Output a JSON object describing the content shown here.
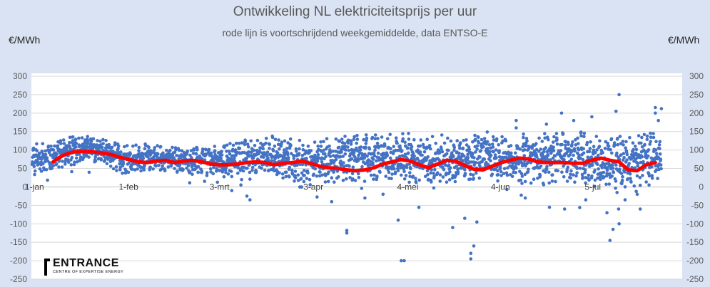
{
  "chart_data": {
    "type": "scatter",
    "title": "Ontwikkeling NL elektriciteitsprijs per uur",
    "subtitle": "rode lijn is voortschrijdend weekgemiddelde, data ENTSO-E",
    "ylabel_left": "€/MWh",
    "ylabel_right": "€/MWh",
    "ylim": [
      -250,
      300
    ],
    "yticks": [
      300,
      250,
      200,
      150,
      100,
      50,
      0,
      -50,
      -100,
      -150,
      -200,
      -250
    ],
    "x_tick_labels": [
      "1-jan",
      "1-feb",
      "3-mrt",
      "3-apr",
      "4-mei",
      "4-jun",
      "5-jul"
    ],
    "x_tick_days": [
      0,
      31,
      61,
      92,
      123,
      154,
      185
    ],
    "xlim_days": [
      0,
      210
    ],
    "grid": "horizontal",
    "series": [
      {
        "kind": "hourly-points",
        "color": "#4472c4",
        "note_points": "hourly prices, approx. 1-jan to mid-jul",
        "daily_profile": [
          [
            0,
            70,
            40
          ],
          [
            10,
            95,
            35
          ],
          [
            20,
            105,
            30
          ],
          [
            30,
            75,
            35
          ],
          [
            40,
            80,
            30
          ],
          [
            50,
            72,
            30
          ],
          [
            60,
            70,
            35
          ],
          [
            70,
            80,
            40
          ],
          [
            80,
            85,
            45
          ],
          [
            90,
            65,
            50
          ],
          [
            100,
            70,
            55
          ],
          [
            110,
            80,
            55
          ],
          [
            120,
            85,
            55
          ],
          [
            130,
            75,
            60
          ],
          [
            140,
            70,
            55
          ],
          [
            150,
            85,
            55
          ],
          [
            160,
            75,
            55
          ],
          [
            170,
            80,
            60
          ],
          [
            180,
            85,
            60
          ],
          [
            190,
            60,
            65
          ],
          [
            200,
            75,
            65
          ],
          [
            208,
            80,
            60
          ]
        ],
        "outliers": [
          [
            122,
            -200
          ],
          [
            123,
            -200
          ],
          [
            145,
            -195
          ],
          [
            145,
            -180
          ],
          [
            146,
            -160
          ],
          [
            104,
            -125
          ],
          [
            104,
            -118
          ],
          [
            121,
            -90
          ],
          [
            139,
            -110
          ],
          [
            143,
            -85
          ],
          [
            147,
            -95
          ],
          [
            191,
            -145
          ],
          [
            192,
            -115
          ],
          [
            194,
            -100
          ],
          [
            194,
            250
          ],
          [
            206,
            215
          ],
          [
            207,
            180
          ],
          [
            206,
            200
          ],
          [
            208,
            212
          ],
          [
            193,
            205
          ],
          [
            175,
            200
          ],
          [
            179,
            180
          ],
          [
            185,
            190
          ],
          [
            160,
            180
          ],
          [
            71,
            -25
          ],
          [
            72,
            -35
          ],
          [
            66,
            -10
          ],
          [
            99,
            -40
          ],
          [
            110,
            -30
          ],
          [
            116,
            -20
          ],
          [
            163,
            -30
          ],
          [
            171,
            -55
          ],
          [
            176,
            -60
          ],
          [
            183,
            -35
          ],
          [
            190,
            -70
          ],
          [
            196,
            -35
          ],
          [
            201,
            -60
          ],
          [
            200,
            -20
          ],
          [
            160,
            160
          ],
          [
            170,
            170
          ]
        ]
      },
      {
        "kind": "moving-average",
        "name": "voortschrijdend weekgemiddelde",
        "color": "#ff0000",
        "days": [
          7,
          9,
          11,
          14,
          17,
          20,
          23,
          26,
          29,
          32,
          35,
          38,
          41,
          44,
          47,
          50,
          53,
          56,
          59,
          62,
          65,
          68,
          71,
          74,
          77,
          80,
          83,
          86,
          89,
          92,
          95,
          98,
          101,
          104,
          107,
          110,
          113,
          116,
          119,
          122,
          125,
          128,
          131,
          134,
          137,
          140,
          143,
          146,
          149,
          152,
          155,
          158,
          161,
          164,
          167,
          170,
          173,
          176,
          179,
          182,
          185,
          188,
          191,
          194,
          197,
          200,
          203,
          206
        ],
        "values": [
          68,
          80,
          88,
          95,
          96,
          95,
          92,
          88,
          80,
          74,
          68,
          66,
          70,
          72,
          66,
          70,
          72,
          68,
          62,
          60,
          60,
          62,
          66,
          68,
          66,
          60,
          64,
          66,
          70,
          64,
          56,
          52,
          50,
          46,
          44,
          46,
          52,
          62,
          68,
          74,
          70,
          60,
          52,
          62,
          72,
          70,
          58,
          48,
          46,
          56,
          66,
          72,
          78,
          76,
          68,
          66,
          66,
          66,
          64,
          64,
          72,
          78,
          72,
          68,
          46,
          44,
          60,
          66
        ]
      }
    ]
  },
  "logo": {
    "name": "ENTRANCE",
    "tagline": "CENTRE OF EXPERTISE ENERGY"
  }
}
